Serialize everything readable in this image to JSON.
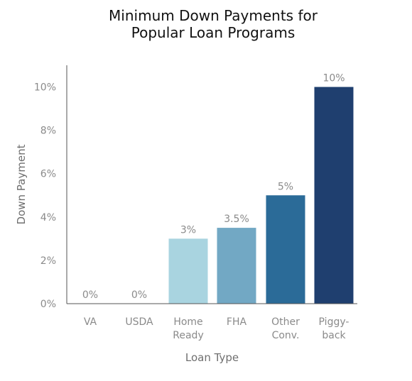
{
  "chart_data": {
    "type": "bar",
    "title_lines": [
      "Minimum Down Payments for",
      "Popular Loan Programs"
    ],
    "xlabel": "Loan Type",
    "ylabel": "Down Payment",
    "categories": [
      [
        "VA"
      ],
      [
        "USDA"
      ],
      [
        "Home",
        "Ready"
      ],
      [
        "FHA"
      ],
      [
        "Other",
        "Conv."
      ],
      [
        "Piggy-",
        "back"
      ]
    ],
    "values": [
      0,
      0,
      3,
      3.5,
      5,
      10
    ],
    "data_labels": [
      "0%",
      "0%",
      "3%",
      "3.5%",
      "5%",
      "10%"
    ],
    "colors": [
      "#a9d4e0",
      "#a9d4e0",
      "#a9d4e0",
      "#72a8c4",
      "#2b6b98",
      "#1f3f6f"
    ],
    "yticks": [
      0,
      2,
      4,
      6,
      8,
      10
    ],
    "ytick_labels": [
      "0%",
      "2%",
      "4%",
      "6%",
      "8%",
      "10%"
    ],
    "ylim": [
      0,
      11
    ],
    "grid": false,
    "legend": "none"
  }
}
